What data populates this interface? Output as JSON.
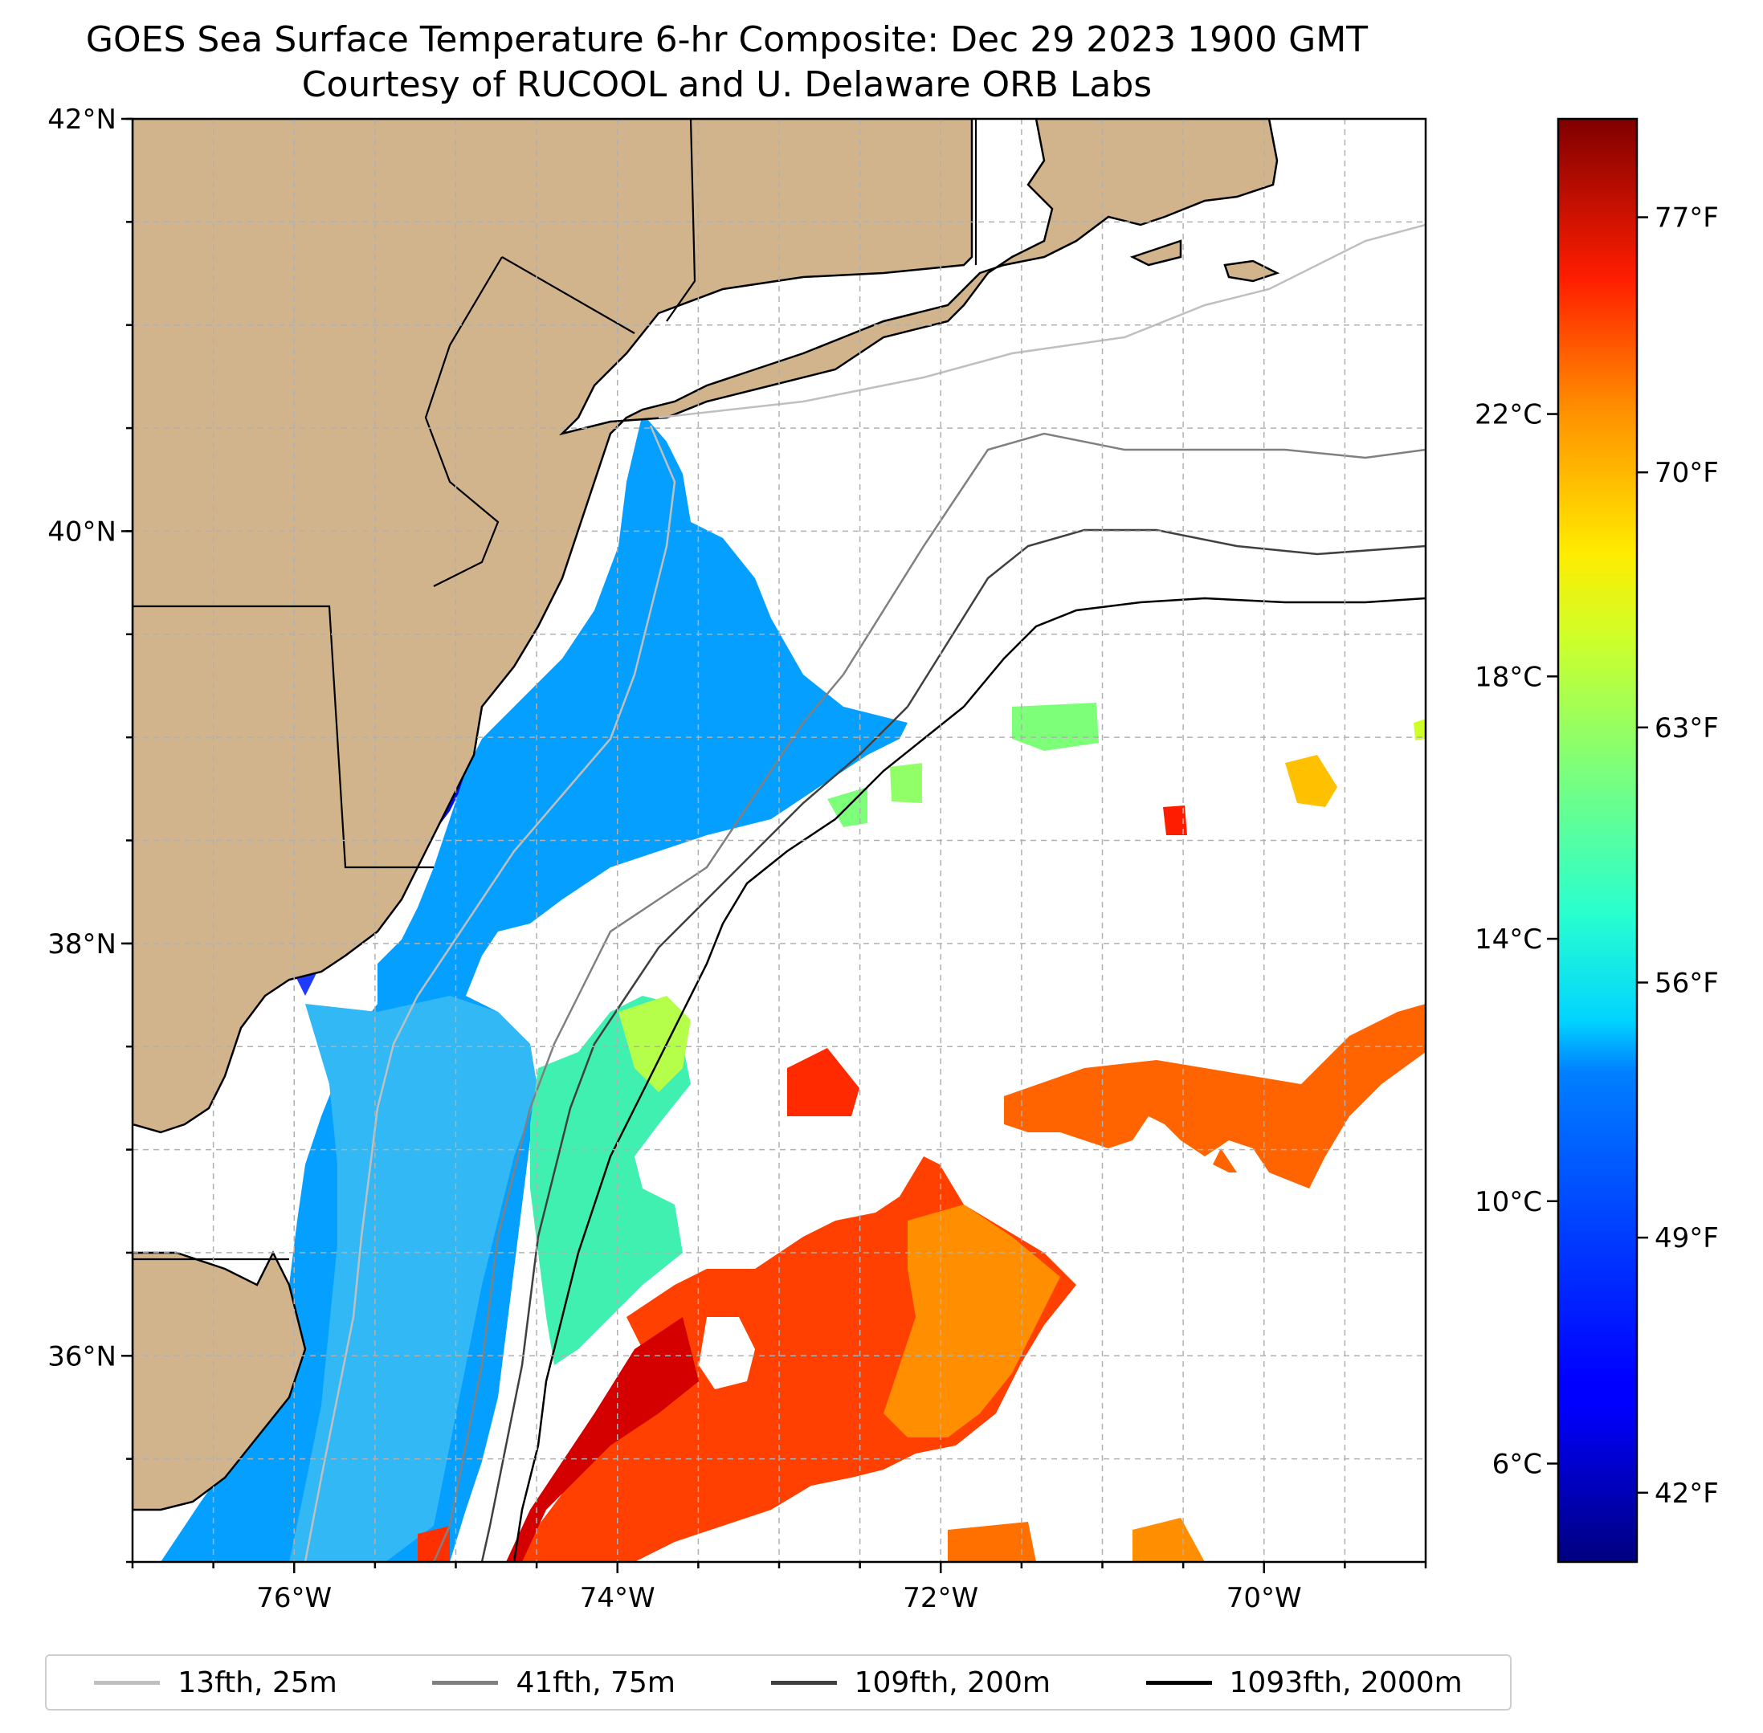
{
  "title": {
    "line1": "GOES Sea Surface Temperature 6-hr Composite: Dec 29 2023 1900 GMT",
    "line2": "Courtesy of RUCOOL and U. Delaware ORB Labs"
  },
  "map": {
    "lon_range": [
      -77,
      -69
    ],
    "lat_range": [
      35,
      42
    ],
    "lat_ticks": [
      {
        "value": 42,
        "label": "42°N"
      },
      {
        "value": 40,
        "label": "40°N"
      },
      {
        "value": 38,
        "label": "38°N"
      },
      {
        "value": 36,
        "label": "36°N"
      }
    ],
    "lon_ticks": [
      {
        "value": -76,
        "label": "76°W"
      },
      {
        "value": -74,
        "label": "74°W"
      },
      {
        "value": -72,
        "label": "72°W"
      },
      {
        "value": -70,
        "label": "70°W"
      }
    ],
    "gridlines": true,
    "land_color": "#d2b48c"
  },
  "colorbar": {
    "colormap": "jet",
    "range_c": [
      4.5,
      26.5
    ],
    "celsius_ticks": [
      {
        "value": 22,
        "label": "22°C"
      },
      {
        "value": 18,
        "label": "18°C"
      },
      {
        "value": 14,
        "label": "14°C"
      },
      {
        "value": 10,
        "label": "10°C"
      },
      {
        "value": 6,
        "label": "6°C"
      }
    ],
    "fahrenheit_ticks": [
      {
        "value": 77,
        "label": "77°F"
      },
      {
        "value": 70,
        "label": "70°F"
      },
      {
        "value": 63,
        "label": "63°F"
      },
      {
        "value": 56,
        "label": "56°F"
      },
      {
        "value": 49,
        "label": "49°F"
      },
      {
        "value": 42,
        "label": "42°F"
      }
    ]
  },
  "legend": {
    "items": [
      {
        "label": "13fth, 25m",
        "color": "#bfbfbf"
      },
      {
        "label": "41fth, 75m",
        "color": "#808080"
      },
      {
        "label": "109fth, 200m",
        "color": "#404040"
      },
      {
        "label": "1093fth, 2000m",
        "color": "#000000"
      }
    ]
  }
}
